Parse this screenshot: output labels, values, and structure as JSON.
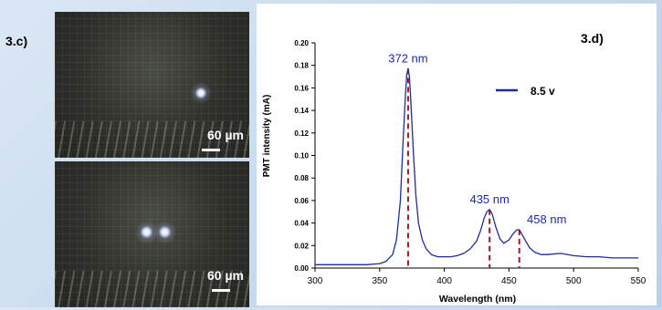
{
  "panel_c": {
    "label": "3.c)",
    "images": [
      {
        "scale_label": "60 µm"
      },
      {
        "scale_label": "60 µm"
      }
    ]
  },
  "panel_d": {
    "label": "3.d)"
  },
  "colors": {
    "series": "#1f2d9c",
    "markers": "#b0141e",
    "annotation_text": "#1a28b4"
  },
  "chart_data": {
    "type": "line",
    "xlabel": "Wavelength (nm)",
    "ylabel": "PMT intensity (mA)",
    "xlim": [
      300,
      550
    ],
    "ylim": [
      0,
      0.2
    ],
    "xticks": [
      300,
      350,
      400,
      450,
      500,
      550
    ],
    "yticks": [
      "0.00",
      "0.02",
      "0.04",
      "0.06",
      "0.08",
      "0.10",
      "0.12",
      "0.14",
      "0.16",
      "0.18",
      "0.20"
    ],
    "legend": {
      "label": "8.5 v",
      "position": "top-right"
    },
    "series": [
      {
        "name": "8.5 v",
        "x": [
          300,
          310,
          320,
          330,
          340,
          350,
          355,
          360,
          363,
          366,
          368,
          370,
          371,
          372,
          373,
          374,
          376,
          378,
          380,
          383,
          386,
          390,
          395,
          400,
          405,
          410,
          415,
          420,
          425,
          428,
          431,
          433,
          435,
          437,
          440,
          443,
          446,
          450,
          453,
          456,
          458,
          460,
          463,
          466,
          470,
          475,
          480,
          490,
          500,
          510,
          520,
          530,
          540,
          550
        ],
        "y": [
          0.003,
          0.003,
          0.003,
          0.003,
          0.003,
          0.004,
          0.006,
          0.012,
          0.025,
          0.06,
          0.11,
          0.155,
          0.172,
          0.177,
          0.17,
          0.15,
          0.105,
          0.065,
          0.04,
          0.025,
          0.017,
          0.012,
          0.01,
          0.01,
          0.01,
          0.011,
          0.013,
          0.017,
          0.024,
          0.033,
          0.045,
          0.05,
          0.052,
          0.048,
          0.036,
          0.026,
          0.022,
          0.025,
          0.03,
          0.034,
          0.034,
          0.03,
          0.024,
          0.018,
          0.014,
          0.012,
          0.012,
          0.013,
          0.011,
          0.01,
          0.01,
          0.009,
          0.009,
          0.009
        ]
      }
    ],
    "annotations": [
      {
        "label": "372 nm",
        "x": 372,
        "y": 0.177
      },
      {
        "label": "435 nm",
        "x": 435,
        "y": 0.052
      },
      {
        "label": "458 nm",
        "x": 458,
        "y": 0.034
      }
    ]
  }
}
